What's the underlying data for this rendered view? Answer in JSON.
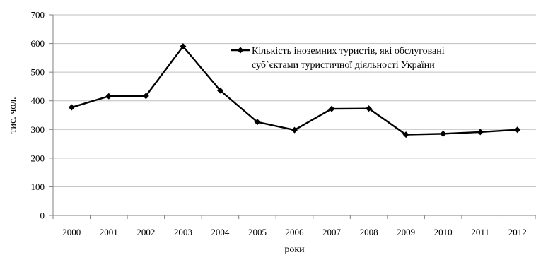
{
  "chart_data": {
    "type": "line",
    "categories": [
      "2000",
      "2001",
      "2002",
      "2003",
      "2004",
      "2005",
      "2006",
      "2007",
      "2008",
      "2009",
      "2010",
      "2011",
      "2012"
    ],
    "series": [
      {
        "name": "Кількість іноземних туристів, які обслуговані суб`єктами туристичної діяльності України",
        "name_lines": [
          "Кількість іноземних туристів, які обслуговані",
          "суб`єктами туристичної діяльності України"
        ],
        "values": [
          377,
          416,
          417,
          590,
          436,
          326,
          298,
          372,
          373,
          282,
          285,
          291,
          299
        ],
        "color": "#000000",
        "marker": "diamond"
      }
    ],
    "xlabel": "роки",
    "ylabel": "тис. чол.",
    "ylim": [
      0,
      700
    ],
    "yticks": [
      "0",
      "100",
      "200",
      "300",
      "400",
      "500",
      "600",
      "700"
    ],
    "grid": true,
    "legend_position": "top-right",
    "colors": {
      "line": "#000000",
      "grid": "#bfbfbf",
      "axis": "#808080"
    }
  }
}
